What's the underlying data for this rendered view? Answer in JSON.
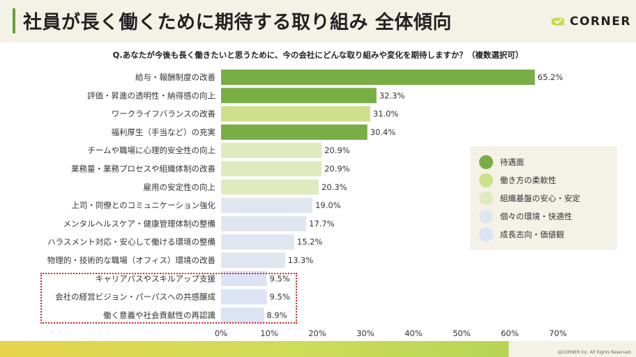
{
  "header": {
    "title": "社員が長く働くために期待する取り組み 全体傾向",
    "logo_text": "CORNER"
  },
  "footer": {
    "copyright": "@CORNER Inc. All Rights Reserved."
  },
  "chart_data": {
    "type": "bar",
    "orientation": "horizontal",
    "title": "Q.あなたが今後も長く働きたいと思うために、今の会社にどんな取り組みや変化を期待しますか？（複数選択可）",
    "xlim": [
      0,
      70
    ],
    "xticks": [
      "0%",
      "10%",
      "20%",
      "30%",
      "40%",
      "50%",
      "60%",
      "70%"
    ],
    "xtick_values": [
      0,
      10,
      20,
      30,
      40,
      50,
      60,
      70
    ],
    "categories": [
      "給与・報酬制度の改善",
      "評価・昇進の透明性・納得感の向上",
      "ワークライフバランスの改善",
      "福利厚生（手当など）の充実",
      "チームや職場に心理的安全性の向上",
      "業務量・業務プロセスや組織体制の改善",
      "雇用の安定性の向上",
      "上司・同僚とのコミュニケーション強化",
      "メンタルヘルスケア・健康管理体制の整備",
      "ハラスメント対応・安心して働ける環境の整備",
      "物理的・技術的な職場（オフィス）環境の改善",
      "キャリアパスやスキルアップ支援",
      "会社の経営ビジョン・パーパスへの共感醸成",
      "働く意義や社会貢献性の再認識"
    ],
    "values": [
      65.2,
      32.3,
      31.0,
      30.4,
      20.9,
      20.9,
      20.3,
      19.0,
      17.7,
      15.2,
      13.3,
      9.5,
      9.5,
      8.9
    ],
    "value_labels": [
      "65.2%",
      "32.3%",
      "31.0%",
      "30.4%",
      "20.9%",
      "20.9%",
      "20.3%",
      "19.0%",
      "17.7%",
      "15.2%",
      "13.3%",
      "9.5%",
      "9.5%",
      "8.9%"
    ],
    "groups": [
      0,
      0,
      1,
      0,
      2,
      2,
      2,
      3,
      3,
      3,
      3,
      4,
      4,
      4
    ],
    "legend": [
      {
        "label": "待遇面",
        "color": "#79ad45"
      },
      {
        "label": "働き方の柔軟性",
        "color": "#cde08b"
      },
      {
        "label": "組織基盤の安心・安定",
        "color": "#dfeabf"
      },
      {
        "label": "個々の環境・快適性",
        "color": "#dfe6ef"
      },
      {
        "label": "成長志向・価値観",
        "color": "#dbe3f5"
      }
    ],
    "legend_placement": "right",
    "highlighted_categories": [
      "キャリアパスやスキルアップ支援",
      "会社の経営ビジョン・パーパスへの共感醸成",
      "働く意義や社会貢献性の再認識"
    ],
    "highlight_style": "red dotted box",
    "grid": false
  }
}
